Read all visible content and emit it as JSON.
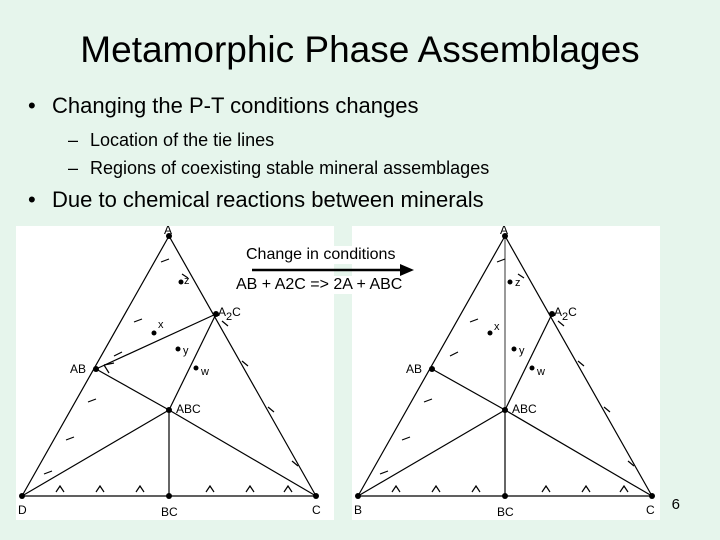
{
  "slide": {
    "title": "Metamorphic Phase Assemblages",
    "bullets": [
      "Changing the P-T conditions changes",
      "Location of the tie lines",
      "Regions of coexisting stable mineral assemblages",
      "Due to chemical reactions between minerals"
    ],
    "page_number": "6"
  },
  "center": {
    "change_label": "Change in conditions",
    "reaction": "AB + A2C  => 2A + ABC"
  },
  "left_diagram": {
    "apex": "A",
    "left_corner": "D",
    "right_corner": "C",
    "bottom_mid": "BC",
    "ab": "AB",
    "a2c_base": "A",
    "a2c_sub": "2",
    "a2c_tail": "C",
    "abc": "ABC",
    "x": "x",
    "y": "y",
    "z": "z",
    "w": "w"
  },
  "right_diagram": {
    "apex": "A",
    "left_corner": "B",
    "right_corner": "C",
    "bottom_mid": "BC",
    "ab": "AB",
    "a2c_base": "A",
    "a2c_sub": "2",
    "a2c_tail": "C",
    "abc": "ABC",
    "x": "x",
    "y": "y",
    "z": "z",
    "w": "w"
  }
}
